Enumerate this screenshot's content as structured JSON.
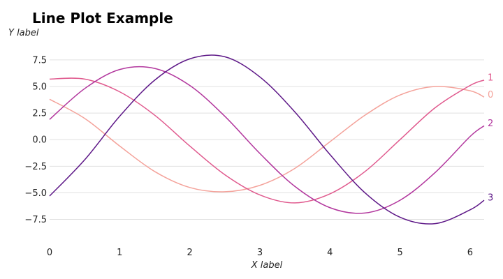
{
  "chart_data": {
    "type": "line",
    "title": "Line Plot Example",
    "xlabel": "X label",
    "ylabel": "Y label",
    "xlim": [
      0,
      6.2
    ],
    "ylim": [
      -9.5,
      9.2
    ],
    "x_ticks": [
      0,
      1,
      2,
      3,
      4,
      5,
      6
    ],
    "y_ticks": [
      -7.5,
      -5.0,
      -2.5,
      0.0,
      2.5,
      5.0,
      7.5
    ],
    "x_tick_labels": [
      "0",
      "1",
      "2",
      "3",
      "4",
      "5",
      "6"
    ],
    "y_tick_labels": [
      "−7.5",
      "−5.0",
      "−2.5",
      "0.0",
      "2.5",
      "5.0",
      "7.5"
    ],
    "grid": "horizontal",
    "series": [
      {
        "name": "0",
        "color": "#f4a29a",
        "x": [
          0,
          0.5,
          1,
          1.5,
          2,
          2.5,
          3,
          3.5,
          4,
          4.5,
          5,
          5.5,
          6,
          6.2
        ],
        "values": [
          3.8,
          2.0,
          -0.6,
          -3.0,
          -4.5,
          -4.9,
          -4.3,
          -2.7,
          -0.2,
          2.3,
          4.2,
          5.0,
          4.6,
          4.0
        ]
      },
      {
        "name": "1",
        "color": "#e05a8e",
        "x": [
          0,
          0.5,
          1,
          1.5,
          2,
          2.5,
          3,
          3.5,
          4,
          4.5,
          5,
          5.5,
          6,
          6.2
        ],
        "values": [
          5.7,
          5.7,
          4.5,
          2.3,
          -0.6,
          -3.3,
          -5.2,
          -5.95,
          -5.1,
          -3.0,
          0.0,
          3.0,
          5.1,
          5.6
        ]
      },
      {
        "name": "2",
        "color": "#b2369d",
        "x": [
          0,
          0.5,
          1,
          1.5,
          2,
          2.5,
          3,
          3.5,
          4,
          4.5,
          5,
          5.5,
          6,
          6.2
        ],
        "values": [
          1.9,
          4.8,
          6.6,
          6.7,
          5.1,
          2.2,
          -1.3,
          -4.4,
          -6.4,
          -6.9,
          -5.7,
          -3.1,
          0.3,
          1.3
        ]
      },
      {
        "name": "3",
        "color": "#5d1787",
        "x": [
          0,
          0.5,
          1,
          1.5,
          2,
          2.5,
          3,
          3.5,
          4,
          4.5,
          5,
          5.5,
          6,
          6.2
        ],
        "values": [
          -5.3,
          -1.9,
          2.2,
          5.6,
          7.6,
          7.8,
          5.9,
          2.6,
          -1.4,
          -5.0,
          -7.3,
          -7.9,
          -6.6,
          -5.7
        ]
      }
    ]
  }
}
